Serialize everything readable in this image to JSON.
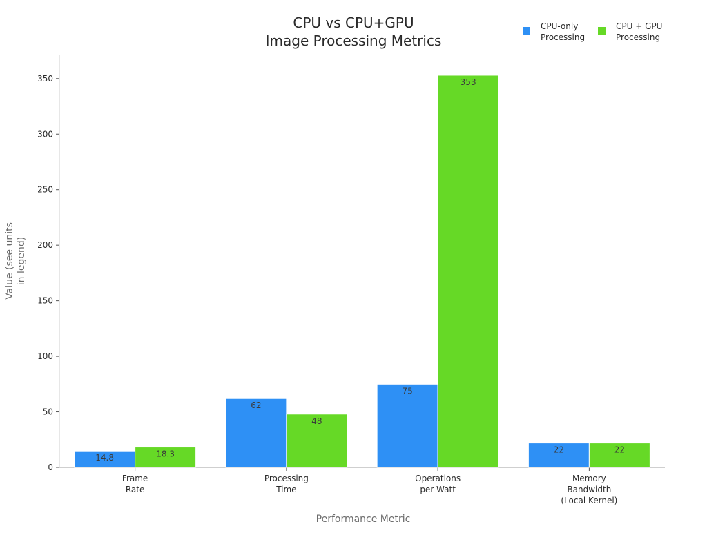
{
  "chart_data": {
    "type": "bar",
    "title": [
      "CPU vs CPU+GPU",
      "Image Processing Metrics"
    ],
    "xlabel": "Performance Metric",
    "ylabel": [
      "Value (see units",
      "in legend)"
    ],
    "categories": [
      [
        "Frame",
        "Rate"
      ],
      [
        "Processing",
        "Time"
      ],
      [
        "Operations",
        "per Watt"
      ],
      [
        "Memory",
        "Bandwidth",
        "(Local Kernel)"
      ]
    ],
    "series": [
      {
        "name": [
          "CPU-only",
          "Processing"
        ],
        "color": "#2e90f5",
        "values": [
          14.8,
          62,
          75,
          22
        ],
        "value_labels": [
          "14.8",
          "62",
          "75",
          "22"
        ]
      },
      {
        "name": [
          "CPU + GPU",
          "Processing"
        ],
        "color": "#66d926",
        "values": [
          18.3,
          48,
          353,
          22
        ],
        "value_labels": [
          "18.3",
          "48",
          "353",
          "22"
        ]
      }
    ],
    "ylim": [
      0,
      371
    ],
    "yticks": [
      0,
      50,
      100,
      150,
      200,
      250,
      300,
      350
    ],
    "grid": false,
    "legend_position": "top-right"
  }
}
